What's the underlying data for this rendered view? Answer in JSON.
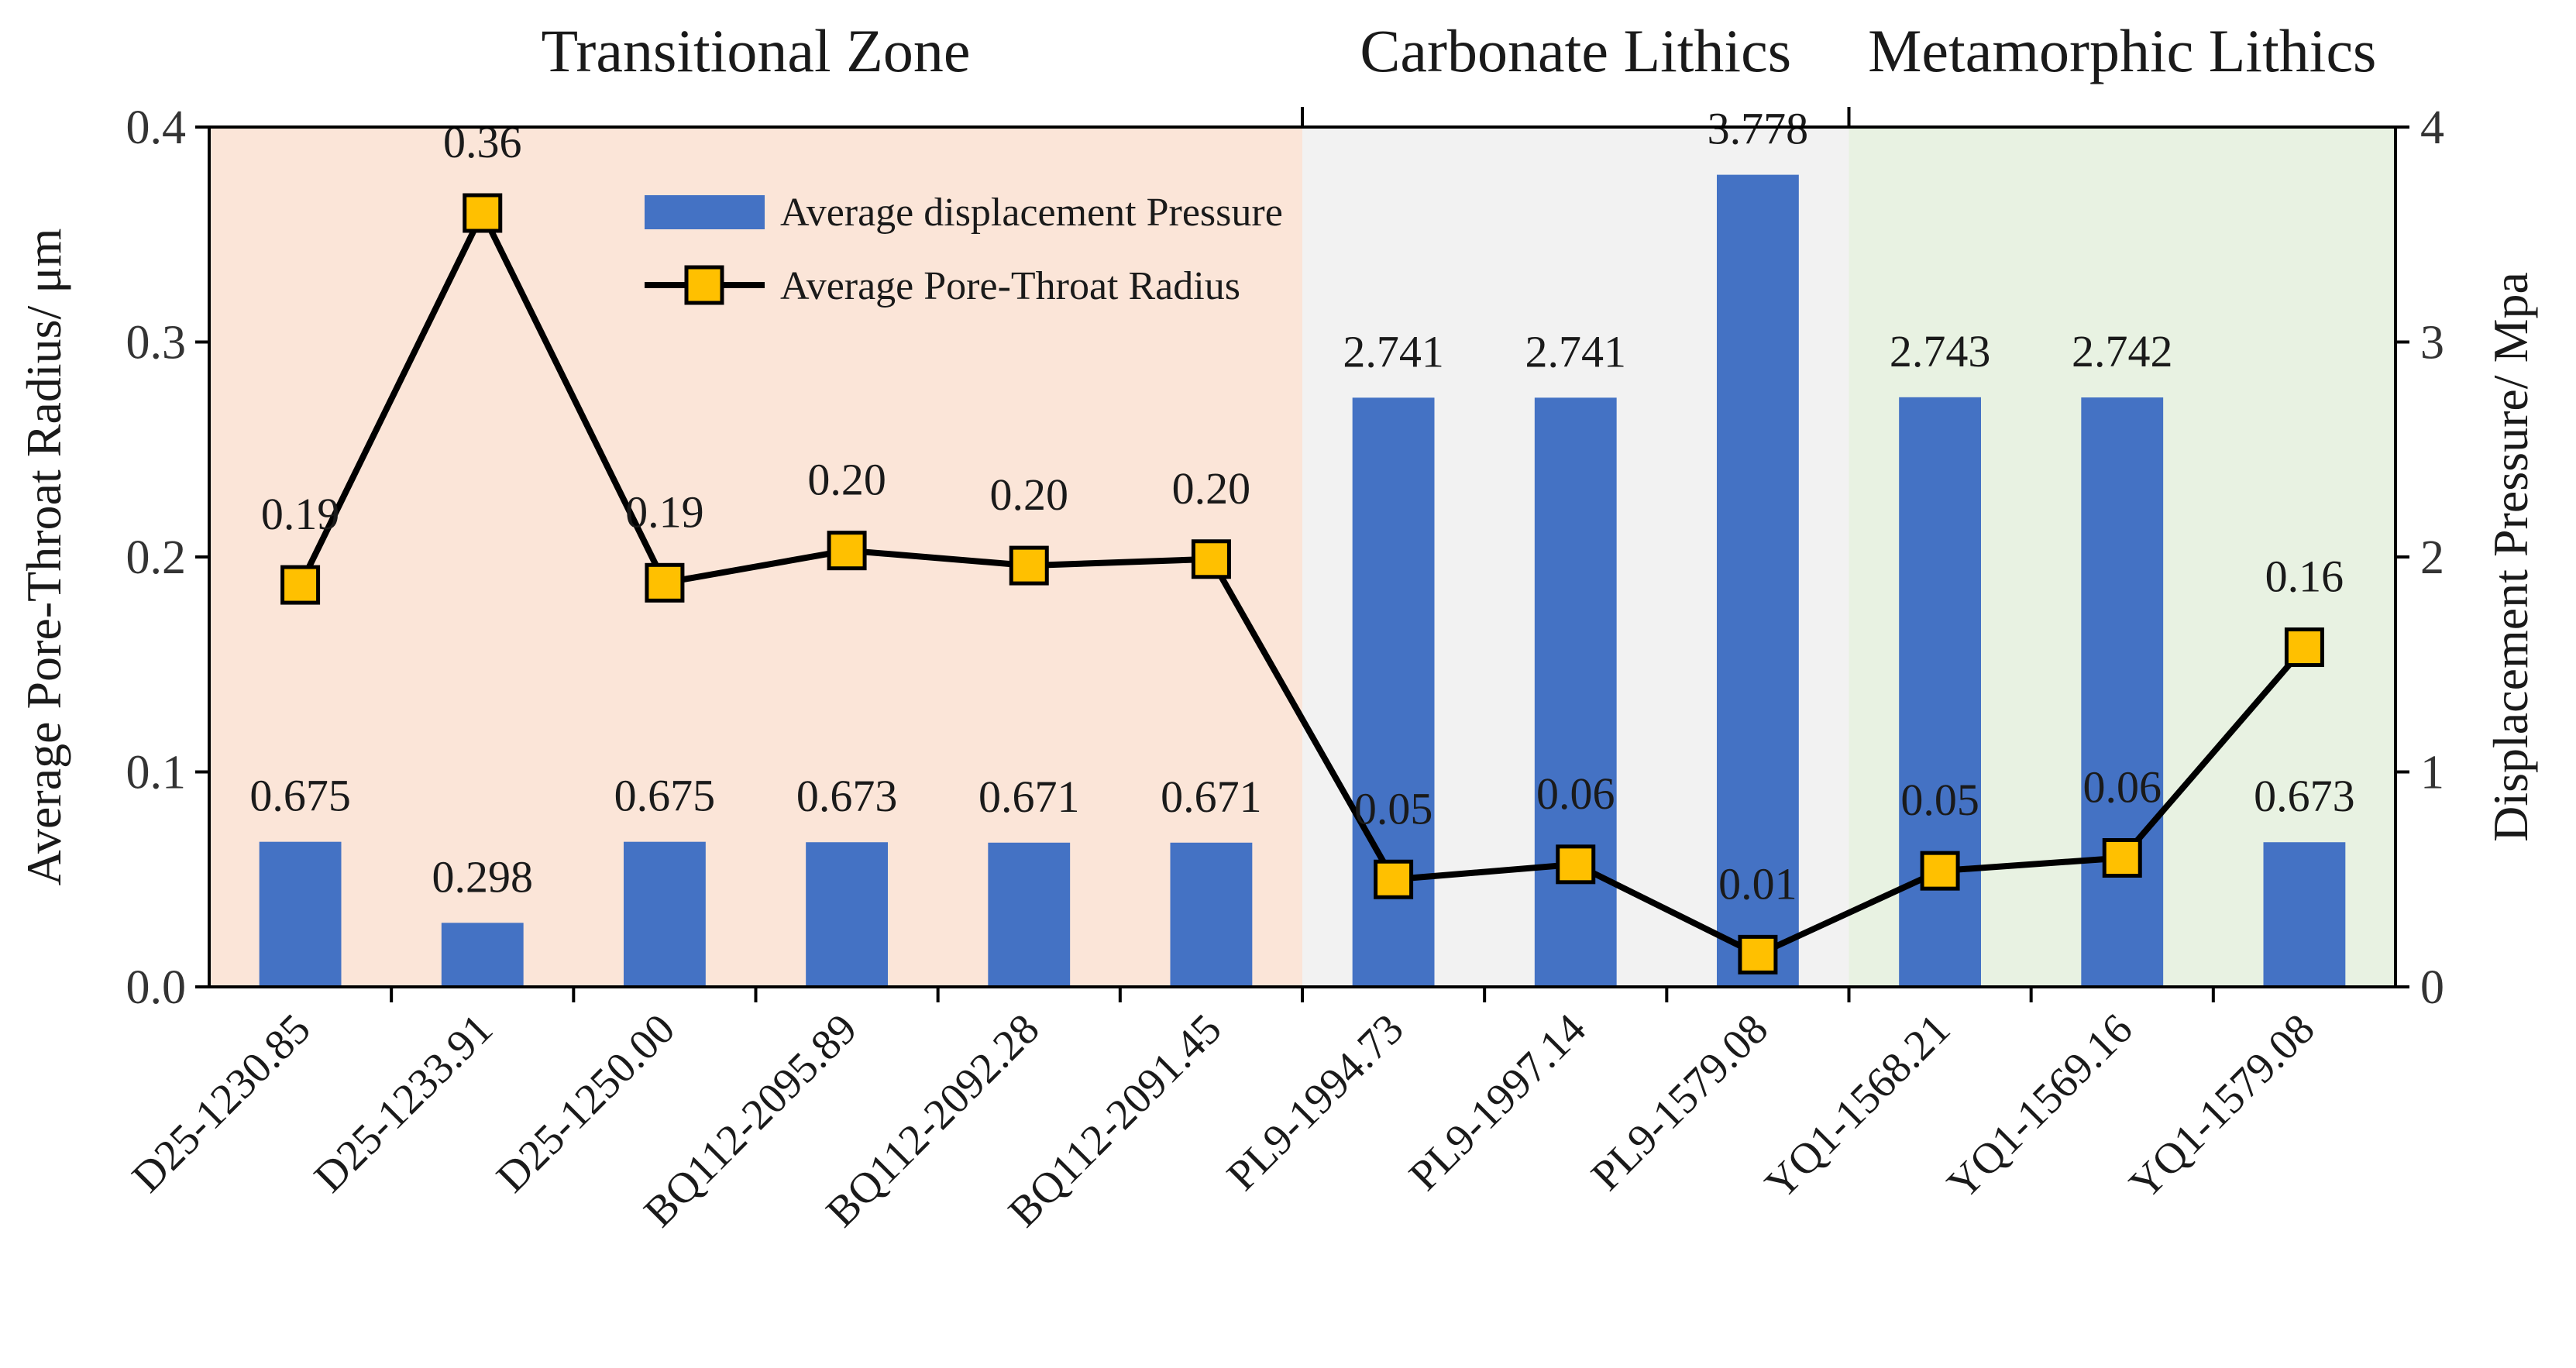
{
  "chart_data": {
    "type": "bar+line",
    "zones": [
      {
        "name": "Transitional Zone",
        "from": 0,
        "to": 5,
        "color": "#fbe5d8"
      },
      {
        "name": "Carbonate Lithics",
        "from": 6,
        "to": 8,
        "color": "#f2f2f2"
      },
      {
        "name": "Metamorphic Lithics",
        "from": 9,
        "to": 11,
        "color": "#e8f2e2"
      }
    ],
    "categories": [
      "D25-1230.85",
      "D25-1233.91",
      "D25-1250.00",
      "BQ112-2095.89",
      "BQ112-2092.28",
      "BQ112-2091.45",
      "PL9-1994.73",
      "PL9-1997.14",
      "PL9-1579.08",
      "YQ1-1568.21",
      "YQ1-1569.16",
      "YQ1-1579.08"
    ],
    "series": [
      {
        "name": "Average displacement Pressure",
        "type": "bar",
        "axis": "right",
        "color": "#4472c4",
        "values": [
          0.675,
          0.298,
          0.675,
          0.673,
          0.671,
          0.671,
          2.741,
          2.741,
          3.778,
          2.743,
          2.742,
          0.673
        ],
        "labels": [
          "0.675",
          "0.298",
          "0.675",
          "0.673",
          "0.671",
          "0.671",
          "2.741",
          "2.741",
          "3.778",
          "2.743",
          "2.742",
          "0.673"
        ]
      },
      {
        "name": "Average Pore-Throat Radius",
        "type": "line",
        "axis": "left",
        "color": "#000000",
        "marker_color": "#ffc000",
        "values": [
          0.187,
          0.36,
          0.188,
          0.203,
          0.196,
          0.199,
          0.05,
          0.057,
          0.015,
          0.054,
          0.06,
          0.158
        ],
        "labels": [
          "0.19",
          "0.36",
          "0.19",
          "0.20",
          "0.20",
          "0.20",
          "0.05",
          "0.06",
          "0.01",
          "0.05",
          "0.06",
          "0.16"
        ]
      }
    ],
    "ylabel_left": "Average Pore-Throat Radius/ μm",
    "ylabel_right": "Displacement Pressure/ Mpa",
    "ylim_left": [
      0,
      0.4
    ],
    "ylim_right": [
      0,
      4
    ],
    "yticks_left": [
      "0.0",
      "0.1",
      "0.2",
      "0.3",
      "0.4"
    ],
    "yticks_right": [
      "0",
      "1",
      "2",
      "3",
      "4"
    ],
    "legend_position": "top-left inside plot"
  }
}
